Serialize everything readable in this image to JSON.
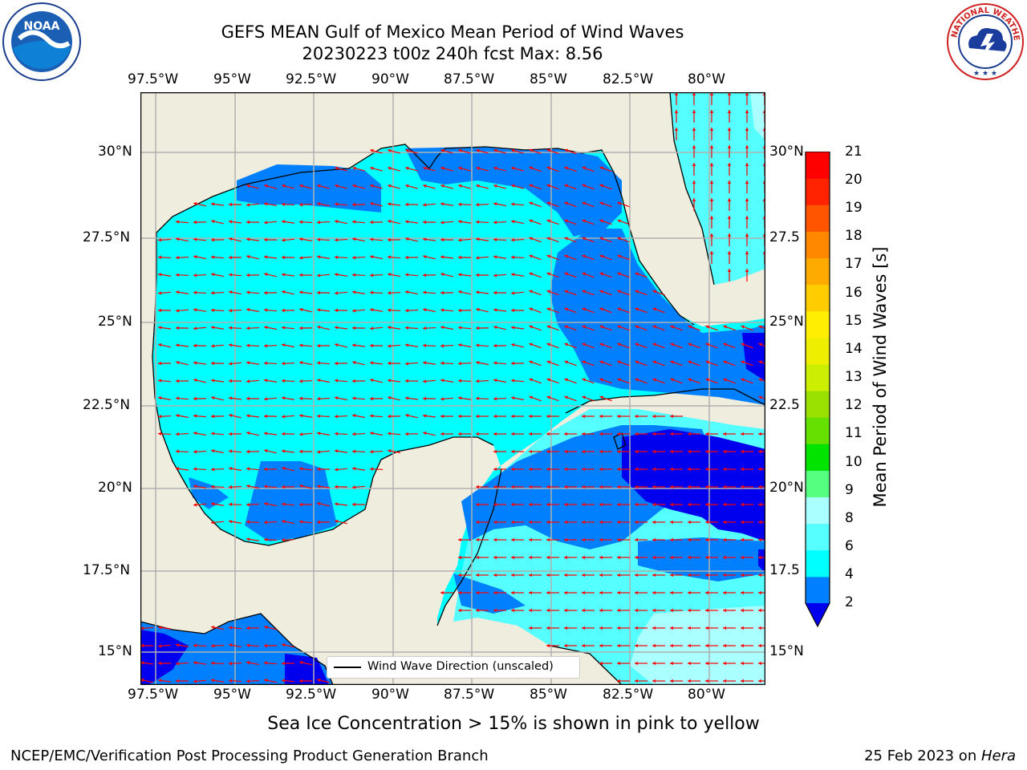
{
  "header": {
    "title_line1": "GEFS MEAN Gulf of Mexico Mean Period of Wind Waves",
    "title_line2": "20230223 t00z 240h fcst   Max: 8.56"
  },
  "map": {
    "lon_ticks": [
      "97.5°W",
      "95°W",
      "92.5°W",
      "90°W",
      "87.5°W",
      "85°W",
      "82.5°W",
      "80°W"
    ],
    "lat_ticks_left": [
      "30°N",
      "27.5°N",
      "25°N",
      "22.5°N",
      "20°N",
      "17.5°N",
      "15°N"
    ],
    "lat_ticks_right": [
      "30°N",
      "27.5",
      "25°N",
      "22.5",
      "20°N",
      "17.5",
      "15°N"
    ],
    "land_color": "#efedde",
    "arrow_color": "#ff0000",
    "legend_text": "Wind Wave Direction (unscaled)"
  },
  "colorbar": {
    "title": "Mean Period of Wind Waves [s]",
    "tick_labels": [
      "21",
      "20",
      "19",
      "18",
      "17",
      "16",
      "15",
      "14",
      "13",
      "12",
      "11",
      "10",
      "9",
      "8",
      "6",
      "4",
      "2"
    ],
    "colors_bottom_to_top": [
      "#0000ee",
      "#0080ff",
      "#00ffff",
      "#55ffff",
      "#aaffff",
      "#55ff80",
      "#00e400",
      "#66e000",
      "#99e000",
      "#ccee00",
      "#eeee00",
      "#ffee00",
      "#ffcc00",
      "#ffaa00",
      "#ff8800",
      "#ff5500",
      "#ff2200",
      "#ff0000"
    ]
  },
  "footer": {
    "sea_ice_note": "Sea Ice Concentration > 15% is shown in pink to yellow",
    "producer": "NCEP/EMC/Verification Post Processing Product Generation Branch",
    "date_prefix": "25 Feb 2023 on ",
    "host": "Hera"
  },
  "logos": {
    "noaa_text": "NOAA",
    "noaa_ring_text": "NATIONAL OCEANIC AND ATMOSPHERIC ADMINISTRATION · U.S. DEPARTMENT OF COMMERCE",
    "nws_ring_text": "NATIONAL WEATHER SERVICE"
  }
}
